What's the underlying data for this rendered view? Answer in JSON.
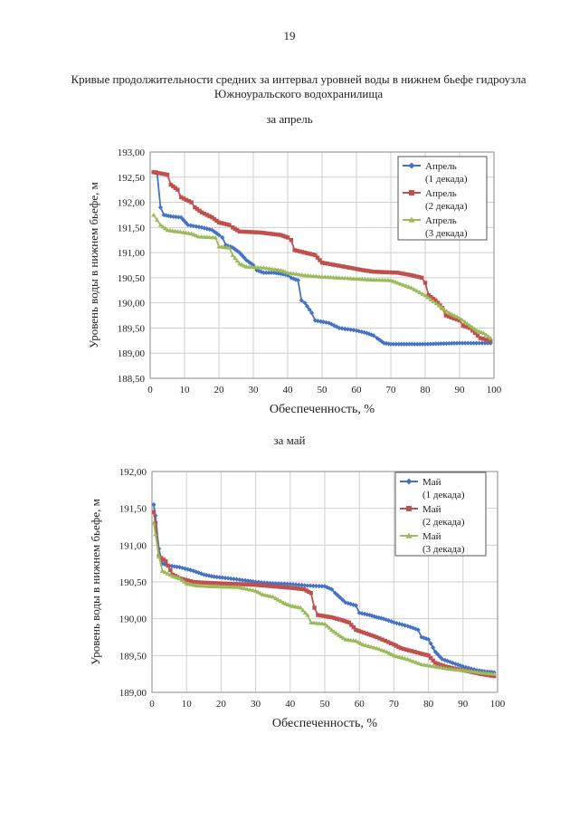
{
  "page": {
    "number": "19",
    "title": "Кривые продолжительности средних за интервал уровней воды в нижнем бьефе гидроузла Южноуральского водохранилища"
  },
  "chart_data": [
    {
      "type": "line",
      "subtitle": "за апрель",
      "xlabel": "Обеспеченность, %",
      "ylabel": "Уровень воды в нижнем бьефе, м",
      "xlim": [
        0,
        100
      ],
      "ylim": [
        188.5,
        193.0
      ],
      "xticks": [
        0,
        10,
        20,
        30,
        40,
        50,
        60,
        70,
        80,
        90,
        100
      ],
      "yticks": [
        "188,50",
        "189,00",
        "189,50",
        "190,00",
        "190,50",
        "191,00",
        "191,50",
        "192,00",
        "192,50",
        "193,00"
      ],
      "legend_position": "top-right",
      "series": [
        {
          "name": "Апрель",
          "name_line2": "(1 декада)",
          "color": "#4472c4",
          "marker": "diamond",
          "points": [
            [
              1,
              192.6
            ],
            [
              2,
              192.6
            ],
            [
              3,
              191.9
            ],
            [
              4,
              191.75
            ],
            [
              6,
              191.72
            ],
            [
              9,
              191.7
            ],
            [
              11,
              191.55
            ],
            [
              15,
              191.5
            ],
            [
              18,
              191.45
            ],
            [
              20,
              191.35
            ],
            [
              21,
              191.3
            ],
            [
              22,
              191.15
            ],
            [
              24,
              191.1
            ],
            [
              26,
              191.0
            ],
            [
              28,
              190.85
            ],
            [
              30,
              190.75
            ],
            [
              31,
              190.65
            ],
            [
              33,
              190.6
            ],
            [
              36,
              190.6
            ],
            [
              38,
              190.58
            ],
            [
              40,
              190.55
            ],
            [
              41,
              190.5
            ],
            [
              43,
              190.45
            ],
            [
              44,
              190.05
            ],
            [
              45,
              190.0
            ],
            [
              47,
              189.8
            ],
            [
              48,
              189.65
            ],
            [
              52,
              189.6
            ],
            [
              55,
              189.5
            ],
            [
              60,
              189.45
            ],
            [
              63,
              189.4
            ],
            [
              65,
              189.35
            ],
            [
              66,
              189.3
            ],
            [
              68,
              189.2
            ],
            [
              70,
              189.18
            ],
            [
              80,
              189.18
            ],
            [
              90,
              189.2
            ],
            [
              99,
              189.2
            ]
          ]
        },
        {
          "name": "Апрель",
          "name_line2": "(2 декада)",
          "color": "#c0504d",
          "marker": "square",
          "points": [
            [
              1,
              192.6
            ],
            [
              5,
              192.55
            ],
            [
              6,
              192.35
            ],
            [
              8,
              192.25
            ],
            [
              9,
              192.1
            ],
            [
              12,
              192.0
            ],
            [
              13,
              191.9
            ],
            [
              15,
              191.8
            ],
            [
              18,
              191.7
            ],
            [
              20,
              191.6
            ],
            [
              23,
              191.55
            ],
            [
              24,
              191.5
            ],
            [
              26,
              191.42
            ],
            [
              32,
              191.4
            ],
            [
              38,
              191.35
            ],
            [
              40,
              191.3
            ],
            [
              41,
              191.25
            ],
            [
              42,
              191.05
            ],
            [
              48,
              190.95
            ],
            [
              50,
              190.8
            ],
            [
              54,
              190.75
            ],
            [
              58,
              190.7
            ],
            [
              62,
              190.65
            ],
            [
              65,
              190.62
            ],
            [
              72,
              190.6
            ],
            [
              76,
              190.55
            ],
            [
              79,
              190.5
            ],
            [
              80,
              190.4
            ],
            [
              81,
              190.15
            ],
            [
              83,
              190.05
            ],
            [
              85,
              189.9
            ],
            [
              86,
              189.75
            ],
            [
              90,
              189.65
            ],
            [
              91,
              189.55
            ],
            [
              93,
              189.5
            ],
            [
              96,
              189.3
            ],
            [
              99,
              189.25
            ]
          ]
        },
        {
          "name": "Апрель",
          "name_line2": "(3 декада)",
          "color": "#9bbb59",
          "marker": "triangle",
          "points": [
            [
              1,
              191.75
            ],
            [
              2,
              191.65
            ],
            [
              3,
              191.55
            ],
            [
              5,
              191.45
            ],
            [
              8,
              191.42
            ],
            [
              12,
              191.38
            ],
            [
              14,
              191.32
            ],
            [
              19,
              191.3
            ],
            [
              20,
              191.12
            ],
            [
              23,
              191.1
            ],
            [
              24,
              190.95
            ],
            [
              26,
              190.78
            ],
            [
              28,
              190.72
            ],
            [
              33,
              190.7
            ],
            [
              38,
              190.65
            ],
            [
              40,
              190.6
            ],
            [
              45,
              190.55
            ],
            [
              50,
              190.52
            ],
            [
              55,
              190.5
            ],
            [
              60,
              190.48
            ],
            [
              65,
              190.46
            ],
            [
              70,
              190.45
            ],
            [
              72,
              190.4
            ],
            [
              76,
              190.3
            ],
            [
              80,
              190.15
            ],
            [
              84,
              189.95
            ],
            [
              87,
              189.8
            ],
            [
              90,
              189.7
            ],
            [
              93,
              189.55
            ],
            [
              95,
              189.45
            ],
            [
              97,
              189.4
            ],
            [
              99,
              189.3
            ]
          ]
        }
      ]
    },
    {
      "type": "line",
      "subtitle": "за май",
      "xlabel": "Обеспеченность, %",
      "ylabel": "Уровень воды в нижнем бьефе, м",
      "xlim": [
        0,
        100
      ],
      "ylim": [
        189.0,
        192.0
      ],
      "xticks": [
        0,
        10,
        20,
        30,
        40,
        50,
        60,
        70,
        80,
        90,
        100
      ],
      "yticks": [
        "189,00",
        "189,50",
        "190,00",
        "190,50",
        "191,00",
        "191,50",
        "192,00"
      ],
      "legend_position": "top-right",
      "series": [
        {
          "name": "Май",
          "name_line2": "(1 декада)",
          "color": "#4472c4",
          "marker": "diamond",
          "points": [
            [
              0.5,
              191.55
            ],
            [
              1,
              191.4
            ],
            [
              2,
              190.95
            ],
            [
              3,
              190.75
            ],
            [
              5,
              190.72
            ],
            [
              8,
              190.7
            ],
            [
              12,
              190.65
            ],
            [
              15,
              190.6
            ],
            [
              18,
              190.57
            ],
            [
              22,
              190.55
            ],
            [
              27,
              190.52
            ],
            [
              30,
              190.5
            ],
            [
              35,
              190.48
            ],
            [
              40,
              190.47
            ],
            [
              45,
              190.45
            ],
            [
              50,
              190.44
            ],
            [
              52,
              190.4
            ],
            [
              53,
              190.35
            ],
            [
              56,
              190.22
            ],
            [
              59,
              190.18
            ],
            [
              60,
              190.08
            ],
            [
              63,
              190.05
            ],
            [
              65,
              190.02
            ],
            [
              67,
              190.0
            ],
            [
              70,
              189.95
            ],
            [
              74,
              189.9
            ],
            [
              77,
              189.85
            ],
            [
              78,
              189.75
            ],
            [
              80,
              189.72
            ],
            [
              82,
              189.55
            ],
            [
              84,
              189.45
            ],
            [
              87,
              189.4
            ],
            [
              90,
              189.35
            ],
            [
              94,
              189.3
            ],
            [
              97,
              189.28
            ],
            [
              99,
              189.27
            ]
          ]
        },
        {
          "name": "Май",
          "name_line2": "(2 декада)",
          "color": "#c0504d",
          "marker": "square",
          "points": [
            [
              0.5,
              191.45
            ],
            [
              1,
              191.3
            ],
            [
              2,
              190.85
            ],
            [
              4,
              190.78
            ],
            [
              6,
              190.6
            ],
            [
              8,
              190.55
            ],
            [
              12,
              190.5
            ],
            [
              15,
              190.49
            ],
            [
              20,
              190.48
            ],
            [
              25,
              190.47
            ],
            [
              30,
              190.46
            ],
            [
              35,
              190.44
            ],
            [
              40,
              190.42
            ],
            [
              44,
              190.4
            ],
            [
              46,
              190.35
            ],
            [
              47,
              190.15
            ],
            [
              48,
              190.05
            ],
            [
              52,
              190.02
            ],
            [
              55,
              189.98
            ],
            [
              57,
              189.95
            ],
            [
              59,
              189.85
            ],
            [
              62,
              189.8
            ],
            [
              65,
              189.75
            ],
            [
              70,
              189.65
            ],
            [
              72,
              189.6
            ],
            [
              76,
              189.55
            ],
            [
              80,
              189.5
            ],
            [
              82,
              189.4
            ],
            [
              85,
              189.35
            ],
            [
              90,
              189.3
            ],
            [
              95,
              189.25
            ],
            [
              99,
              189.22
            ]
          ]
        },
        {
          "name": "Май",
          "name_line2": "(3 декада)",
          "color": "#9bbb59",
          "marker": "triangle",
          "points": [
            [
              0.5,
              191.3
            ],
            [
              1,
              191.15
            ],
            [
              2,
              190.85
            ],
            [
              3,
              190.65
            ],
            [
              6,
              190.58
            ],
            [
              8,
              190.55
            ],
            [
              10,
              190.48
            ],
            [
              13,
              190.45
            ],
            [
              18,
              190.44
            ],
            [
              25,
              190.43
            ],
            [
              30,
              190.38
            ],
            [
              32,
              190.33
            ],
            [
              35,
              190.3
            ],
            [
              38,
              190.22
            ],
            [
              40,
              190.18
            ],
            [
              43,
              190.15
            ],
            [
              45,
              190.05
            ],
            [
              46,
              189.95
            ],
            [
              50,
              189.93
            ],
            [
              52,
              189.85
            ],
            [
              54,
              189.78
            ],
            [
              56,
              189.72
            ],
            [
              59,
              189.7
            ],
            [
              61,
              189.65
            ],
            [
              65,
              189.6
            ],
            [
              68,
              189.55
            ],
            [
              70,
              189.5
            ],
            [
              74,
              189.45
            ],
            [
              78,
              189.38
            ],
            [
              82,
              189.35
            ],
            [
              86,
              189.32
            ],
            [
              90,
              189.3
            ],
            [
              95,
              189.27
            ],
            [
              99,
              189.25
            ]
          ]
        }
      ]
    }
  ]
}
